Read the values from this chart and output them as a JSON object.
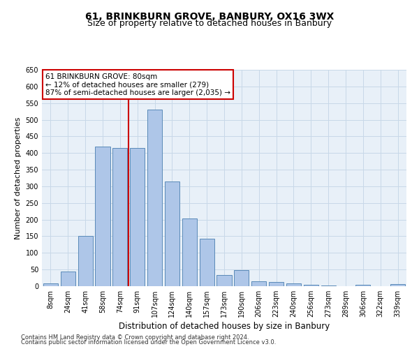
{
  "title": "61, BRINKBURN GROVE, BANBURY, OX16 3WX",
  "subtitle": "Size of property relative to detached houses in Banbury",
  "xlabel": "Distribution of detached houses by size in Banbury",
  "ylabel": "Number of detached properties",
  "categories": [
    "8sqm",
    "24sqm",
    "41sqm",
    "58sqm",
    "74sqm",
    "91sqm",
    "107sqm",
    "124sqm",
    "140sqm",
    "157sqm",
    "173sqm",
    "190sqm",
    "206sqm",
    "223sqm",
    "240sqm",
    "256sqm",
    "273sqm",
    "289sqm",
    "306sqm",
    "322sqm",
    "339sqm"
  ],
  "values": [
    8,
    45,
    150,
    420,
    415,
    415,
    530,
    315,
    203,
    142,
    33,
    48,
    15,
    12,
    8,
    4,
    3,
    0,
    5,
    0,
    6
  ],
  "bar_color": "#aec6e8",
  "bar_edge_color": "#5a8ab8",
  "vline_color": "#cc0000",
  "annotation_line1": "61 BRINKBURN GROVE: 80sqm",
  "annotation_line2": "← 12% of detached houses are smaller (279)",
  "annotation_line3": "87% of semi-detached houses are larger (2,035) →",
  "annotation_box_color": "#ffffff",
  "annotation_box_edge": "#cc0000",
  "footer1": "Contains HM Land Registry data © Crown copyright and database right 2024.",
  "footer2": "Contains public sector information licensed under the Open Government Licence v3.0.",
  "ylim": [
    0,
    650
  ],
  "yticks": [
    0,
    50,
    100,
    150,
    200,
    250,
    300,
    350,
    400,
    450,
    500,
    550,
    600,
    650
  ],
  "grid_color": "#c8d8e8",
  "bg_color": "#e8f0f8",
  "title_fontsize": 10,
  "subtitle_fontsize": 9,
  "tick_fontsize": 7,
  "xlabel_fontsize": 8.5,
  "ylabel_fontsize": 8,
  "annotation_fontsize": 7.5,
  "footer_fontsize": 6
}
